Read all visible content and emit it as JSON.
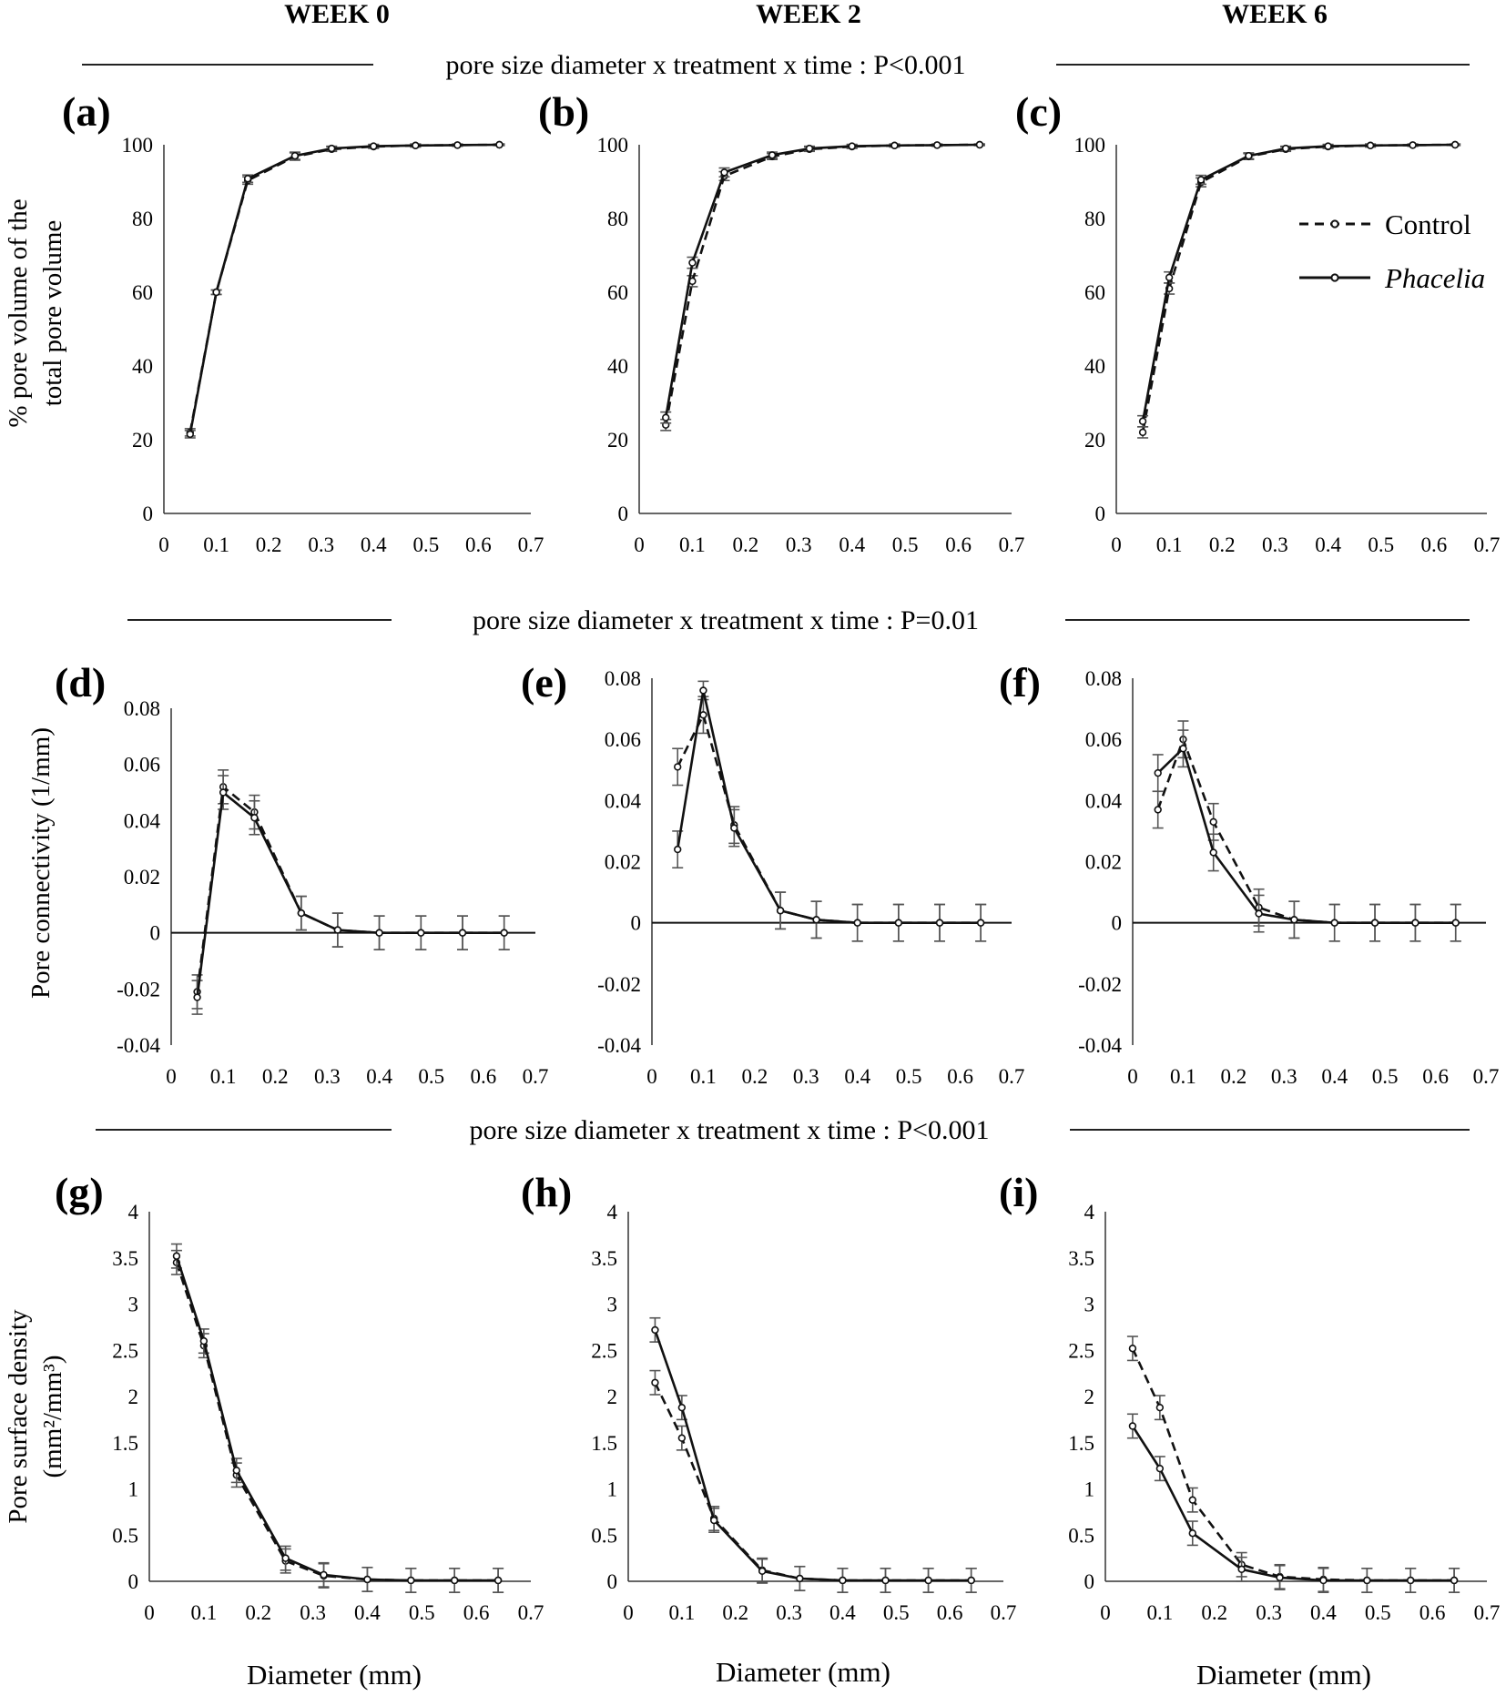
{
  "columns": [
    "WEEK 0",
    "WEEK 2",
    "WEEK 6"
  ],
  "rows": [
    {
      "stat": "pore size diameter x treatment x time : P<0.001",
      "ylabel": [
        "% pore volume of the",
        "total pore volume"
      ]
    },
    {
      "stat": "pore size diameter x treatment x time : P=0.01",
      "ylabel": [
        "Pore connectivity (1/mm)"
      ]
    },
    {
      "stat": "pore size diameter x treatment x time : P<0.001",
      "ylabel": [
        "Pore surface density",
        "(mm²/mm³)"
      ]
    }
  ],
  "xlabel": "Diameter (mm)",
  "legend": {
    "control": "Control",
    "phacelia": "Phacelia"
  },
  "colors": {
    "line": "#111111",
    "axis": "#333333",
    "divider": "#222222"
  },
  "chart_data": [
    {
      "panel": "(a)",
      "type": "line",
      "xlim": [
        0,
        0.7
      ],
      "xticks": [
        "0",
        "0.1",
        "0.2",
        "0.3",
        "0.4",
        "0.5",
        "0.6",
        "0.7"
      ],
      "ylim": [
        0,
        100
      ],
      "yticks": [
        "0",
        "20",
        "40",
        "60",
        "80",
        "100"
      ],
      "x": [
        0.05,
        0.1,
        0.16,
        0.25,
        0.32,
        0.4,
        0.48,
        0.56,
        0.64
      ],
      "series": [
        {
          "name": "Control",
          "values": [
            22,
            60,
            90.3,
            96.8,
            98.8,
            99.5,
            99.8,
            99.9,
            100
          ],
          "err": [
            1,
            0.6,
            1,
            1,
            0.6,
            0.5,
            0.4,
            0.3,
            0.2
          ]
        },
        {
          "name": "Phacelia",
          "values": [
            21.5,
            60,
            90.8,
            97,
            99,
            99.6,
            99.8,
            99.9,
            100
          ],
          "err": [
            1,
            0.6,
            1,
            1,
            0.6,
            0.5,
            0.4,
            0.3,
            0.2
          ]
        }
      ]
    },
    {
      "panel": "(b)",
      "type": "line",
      "xlim": [
        0,
        0.7
      ],
      "xticks": [
        "0",
        "0.1",
        "0.2",
        "0.3",
        "0.4",
        "0.5",
        "0.6",
        "0.7"
      ],
      "ylim": [
        0,
        100
      ],
      "yticks": [
        "0",
        "20",
        "40",
        "60",
        "80",
        "100"
      ],
      "x": [
        0.05,
        0.1,
        0.16,
        0.25,
        0.32,
        0.4,
        0.48,
        0.56,
        0.64
      ],
      "series": [
        {
          "name": "Control",
          "values": [
            24,
            63,
            91.5,
            96.8,
            98.8,
            99.5,
            99.8,
            99.9,
            100
          ],
          "err": [
            1.5,
            1.5,
            1.2,
            0.8,
            0.6,
            0.5,
            0.4,
            0.3,
            0.2
          ]
        },
        {
          "name": "Phacelia",
          "values": [
            26,
            68,
            92.5,
            97.2,
            99,
            99.6,
            99.8,
            99.9,
            100
          ],
          "err": [
            1.5,
            1.5,
            1.2,
            0.8,
            0.6,
            0.5,
            0.4,
            0.3,
            0.2
          ]
        }
      ]
    },
    {
      "panel": "(c)",
      "type": "line",
      "xlim": [
        0,
        0.7
      ],
      "xticks": [
        "0",
        "0.1",
        "0.2",
        "0.3",
        "0.4",
        "0.5",
        "0.6",
        "0.7"
      ],
      "ylim": [
        0,
        100
      ],
      "yticks": [
        "0",
        "20",
        "40",
        "60",
        "80",
        "100"
      ],
      "x": [
        0.05,
        0.1,
        0.16,
        0.25,
        0.32,
        0.4,
        0.48,
        0.56,
        0.64
      ],
      "series": [
        {
          "name": "Control",
          "values": [
            22,
            61,
            89.8,
            96.8,
            98.8,
            99.5,
            99.8,
            99.9,
            100
          ],
          "err": [
            1.5,
            1.5,
            1.2,
            0.8,
            0.6,
            0.5,
            0.4,
            0.3,
            0.2
          ]
        },
        {
          "name": "Phacelia",
          "values": [
            25,
            64,
            90.5,
            97,
            99,
            99.6,
            99.8,
            99.9,
            100
          ],
          "err": [
            1.5,
            1.5,
            1.2,
            0.8,
            0.6,
            0.5,
            0.4,
            0.3,
            0.2
          ]
        }
      ]
    },
    {
      "panel": "(d)",
      "type": "line",
      "xlim": [
        0,
        0.7
      ],
      "xticks": [
        "0",
        "0.1",
        "0.2",
        "0.3",
        "0.4",
        "0.5",
        "0.6",
        "0.7"
      ],
      "ylim": [
        -0.04,
        0.08
      ],
      "yticks": [
        "-0.04",
        "-0.02",
        "0",
        "0.02",
        "0.04",
        "0.06",
        "0.08"
      ],
      "zero_line": true,
      "x": [
        0.05,
        0.1,
        0.16,
        0.25,
        0.32,
        0.4,
        0.48,
        0.56,
        0.64
      ],
      "series": [
        {
          "name": "Control",
          "values": [
            -0.021,
            0.052,
            0.043,
            0.007,
            0.001,
            0,
            0,
            0,
            0
          ],
          "err": [
            0.006,
            0.006,
            0.006,
            0.006,
            0.006,
            0.006,
            0.006,
            0.006,
            0.006
          ]
        },
        {
          "name": "Phacelia",
          "values": [
            -0.023,
            0.05,
            0.041,
            0.007,
            0.001,
            0,
            0,
            0,
            0
          ],
          "err": [
            0.006,
            0.006,
            0.006,
            0.006,
            0.006,
            0.006,
            0.006,
            0.006,
            0.006
          ]
        }
      ]
    },
    {
      "panel": "(e)",
      "type": "line",
      "xlim": [
        0,
        0.7
      ],
      "xticks": [
        "0",
        "0.1",
        "0.2",
        "0.3",
        "0.4",
        "0.5",
        "0.6",
        "0.7"
      ],
      "ylim": [
        -0.04,
        0.08
      ],
      "yticks": [
        "-0.04",
        "-0.02",
        "0",
        "0.02",
        "0.04",
        "0.06",
        "0.08"
      ],
      "zero_line": true,
      "x": [
        0.05,
        0.1,
        0.16,
        0.25,
        0.32,
        0.4,
        0.48,
        0.56,
        0.64
      ],
      "series": [
        {
          "name": "Control",
          "values": [
            0.051,
            0.068,
            0.032,
            0.004,
            0.001,
            0,
            0,
            0,
            0
          ],
          "err": [
            0.006,
            0.006,
            0.006,
            0.006,
            0.006,
            0.006,
            0.006,
            0.006,
            0.006
          ]
        },
        {
          "name": "Phacelia",
          "values": [
            0.024,
            0.076,
            0.031,
            0.004,
            0.001,
            0,
            0,
            0,
            0
          ],
          "err": [
            0.006,
            0.003,
            0.006,
            0.006,
            0.006,
            0.006,
            0.006,
            0.006,
            0.006
          ]
        }
      ]
    },
    {
      "panel": "(f)",
      "type": "line",
      "xlim": [
        0,
        0.7
      ],
      "xticks": [
        "0",
        "0.1",
        "0.2",
        "0.3",
        "0.4",
        "0.5",
        "0.6",
        "0.7"
      ],
      "ylim": [
        -0.04,
        0.08
      ],
      "yticks": [
        "-0.04",
        "-0.02",
        "0",
        "0.02",
        "0.04",
        "0.06",
        "0.08"
      ],
      "zero_line": true,
      "x": [
        0.05,
        0.1,
        0.16,
        0.25,
        0.32,
        0.4,
        0.48,
        0.56,
        0.64
      ],
      "series": [
        {
          "name": "Control",
          "values": [
            0.037,
            0.06,
            0.033,
            0.005,
            0.001,
            0,
            0,
            0,
            0
          ],
          "err": [
            0.006,
            0.006,
            0.006,
            0.006,
            0.006,
            0.006,
            0.006,
            0.006,
            0.006
          ]
        },
        {
          "name": "Phacelia",
          "values": [
            0.049,
            0.057,
            0.023,
            0.003,
            0.001,
            0,
            0,
            0,
            0
          ],
          "err": [
            0.006,
            0.006,
            0.006,
            0.006,
            0.006,
            0.006,
            0.006,
            0.006,
            0.006
          ]
        }
      ]
    },
    {
      "panel": "(g)",
      "type": "line",
      "xlim": [
        0,
        0.7
      ],
      "xticks": [
        "0",
        "0.1",
        "0.2",
        "0.3",
        "0.4",
        "0.5",
        "0.6",
        "0.7"
      ],
      "ylim": [
        0,
        4
      ],
      "yticks": [
        "0",
        "0.5",
        "1",
        "1.5",
        "2",
        "2.5",
        "3",
        "3.5",
        "4"
      ],
      "x": [
        0.05,
        0.1,
        0.16,
        0.25,
        0.32,
        0.4,
        0.48,
        0.56,
        0.64
      ],
      "series": [
        {
          "name": "Control",
          "values": [
            3.45,
            2.55,
            1.15,
            0.22,
            0.06,
            0.02,
            0.01,
            0.01,
            0.01
          ],
          "err": [
            0.13,
            0.13,
            0.13,
            0.13,
            0.13,
            0.13,
            0.13,
            0.13,
            0.13
          ]
        },
        {
          "name": "Phacelia",
          "values": [
            3.52,
            2.6,
            1.2,
            0.25,
            0.07,
            0.02,
            0.01,
            0.01,
            0.01
          ],
          "err": [
            0.13,
            0.13,
            0.13,
            0.13,
            0.13,
            0.13,
            0.13,
            0.13,
            0.13
          ]
        }
      ]
    },
    {
      "panel": "(h)",
      "type": "line",
      "xlim": [
        0,
        0.7
      ],
      "xticks": [
        "0",
        "0.1",
        "0.2",
        "0.3",
        "0.4",
        "0.5",
        "0.6",
        "0.7"
      ],
      "ylim": [
        0,
        4
      ],
      "yticks": [
        "0",
        "0.5",
        "1",
        "1.5",
        "2",
        "2.5",
        "3",
        "3.5",
        "4"
      ],
      "x": [
        0.05,
        0.1,
        0.16,
        0.25,
        0.32,
        0.4,
        0.48,
        0.56,
        0.64
      ],
      "series": [
        {
          "name": "Control",
          "values": [
            2.15,
            1.55,
            0.68,
            0.12,
            0.03,
            0.01,
            0.01,
            0.01,
            0.01
          ],
          "err": [
            0.13,
            0.13,
            0.13,
            0.13,
            0.13,
            0.13,
            0.13,
            0.13,
            0.13
          ]
        },
        {
          "name": "Phacelia",
          "values": [
            2.72,
            1.88,
            0.66,
            0.11,
            0.03,
            0.01,
            0.01,
            0.01,
            0.01
          ],
          "err": [
            0.13,
            0.13,
            0.13,
            0.13,
            0.13,
            0.13,
            0.13,
            0.13,
            0.13
          ]
        }
      ]
    },
    {
      "panel": "(i)",
      "type": "line",
      "xlim": [
        0,
        0.7
      ],
      "xticks": [
        "0",
        "0.1",
        "0.2",
        "0.3",
        "0.4",
        "0.5",
        "0.6",
        "0.7"
      ],
      "ylim": [
        0,
        4
      ],
      "yticks": [
        "0",
        "0.5",
        "1",
        "1.5",
        "2",
        "2.5",
        "3",
        "3.5",
        "4"
      ],
      "x": [
        0.05,
        0.1,
        0.16,
        0.25,
        0.32,
        0.4,
        0.48,
        0.56,
        0.64
      ],
      "series": [
        {
          "name": "Control",
          "values": [
            2.52,
            1.88,
            0.88,
            0.18,
            0.05,
            0.02,
            0.01,
            0.01,
            0.01
          ],
          "err": [
            0.13,
            0.13,
            0.13,
            0.13,
            0.13,
            0.13,
            0.13,
            0.13,
            0.13
          ]
        },
        {
          "name": "Phacelia",
          "values": [
            1.68,
            1.22,
            0.52,
            0.13,
            0.04,
            0.01,
            0.01,
            0.01,
            0.01
          ],
          "err": [
            0.13,
            0.13,
            0.13,
            0.13,
            0.13,
            0.13,
            0.13,
            0.13,
            0.13
          ]
        }
      ]
    }
  ]
}
